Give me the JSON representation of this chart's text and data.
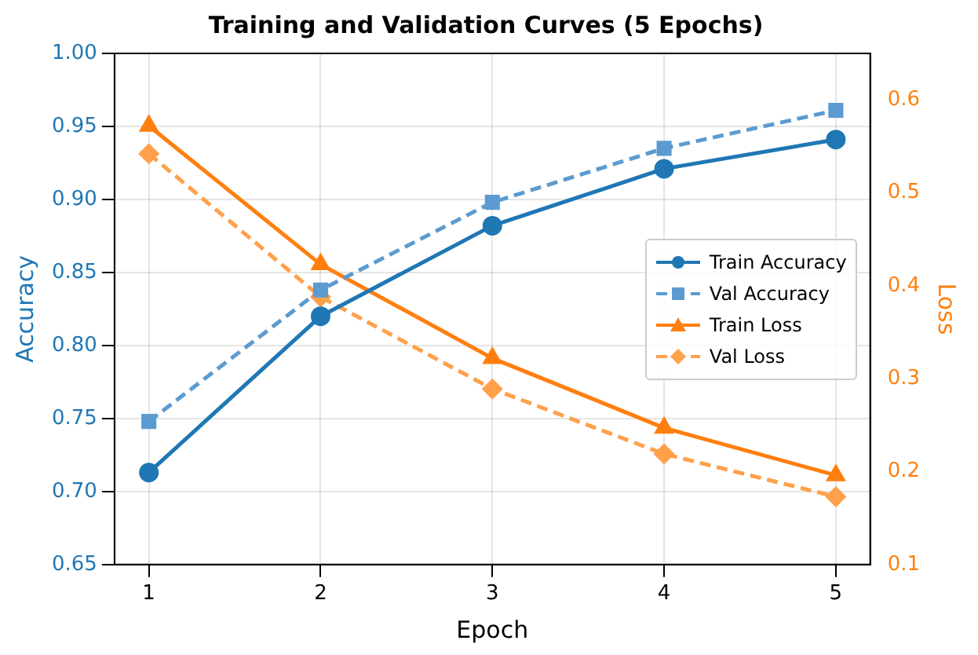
{
  "chart_data": {
    "type": "line",
    "title": "Training and Validation Curves (5 Epochs)",
    "xlabel": "Epoch",
    "ylabel": "Accuracy",
    "y2label": "Loss",
    "x": [
      1,
      2,
      3,
      4,
      5
    ],
    "xlim": [
      0.8,
      5.2
    ],
    "xticks": [
      1,
      2,
      3,
      4,
      5
    ],
    "ylim": [
      0.65,
      1.0
    ],
    "yticks": [
      0.65,
      {
        "value": 0.7,
        "label": "0.70"
      },
      0.75,
      {
        "value": 0.8,
        "label": "0.80"
      },
      0.85,
      {
        "value": 0.9,
        "label": "0.90"
      },
      0.95,
      {
        "value": 1,
        "label": "1.00"
      }
    ],
    "y2lim": [
      0.1,
      0.65
    ],
    "y2ticks": [
      0.1,
      0.2,
      0.3,
      0.4,
      0.5,
      0.6
    ],
    "grid": true,
    "legend": "center right",
    "series": [
      {
        "name": "Train Accuracy",
        "color": "#1f77b4",
        "values": [
          0.713,
          0.82,
          0.882,
          0.921,
          0.941
        ],
        "marker": "circle",
        "line_style": "solid"
      },
      {
        "name": "Val Accuracy",
        "color": "#5b9bd0",
        "values": [
          0.748,
          0.838,
          0.898,
          0.935,
          0.961
        ],
        "marker": "square",
        "line_style": "dashed"
      },
      {
        "name": "Train Loss",
        "color": "#ff7f0e",
        "values": [
          0.572,
          0.423,
          0.322,
          0.247,
          0.196
        ],
        "marker": "triangle",
        "line_style": "solid",
        "axis": "y2"
      },
      {
        "name": "Val Loss",
        "color": "#ffa04a",
        "values": [
          0.542,
          0.388,
          0.289,
          0.219,
          0.173
        ],
        "marker": "diamond",
        "line_style": "dashed",
        "axis": "y2"
      }
    ]
  }
}
